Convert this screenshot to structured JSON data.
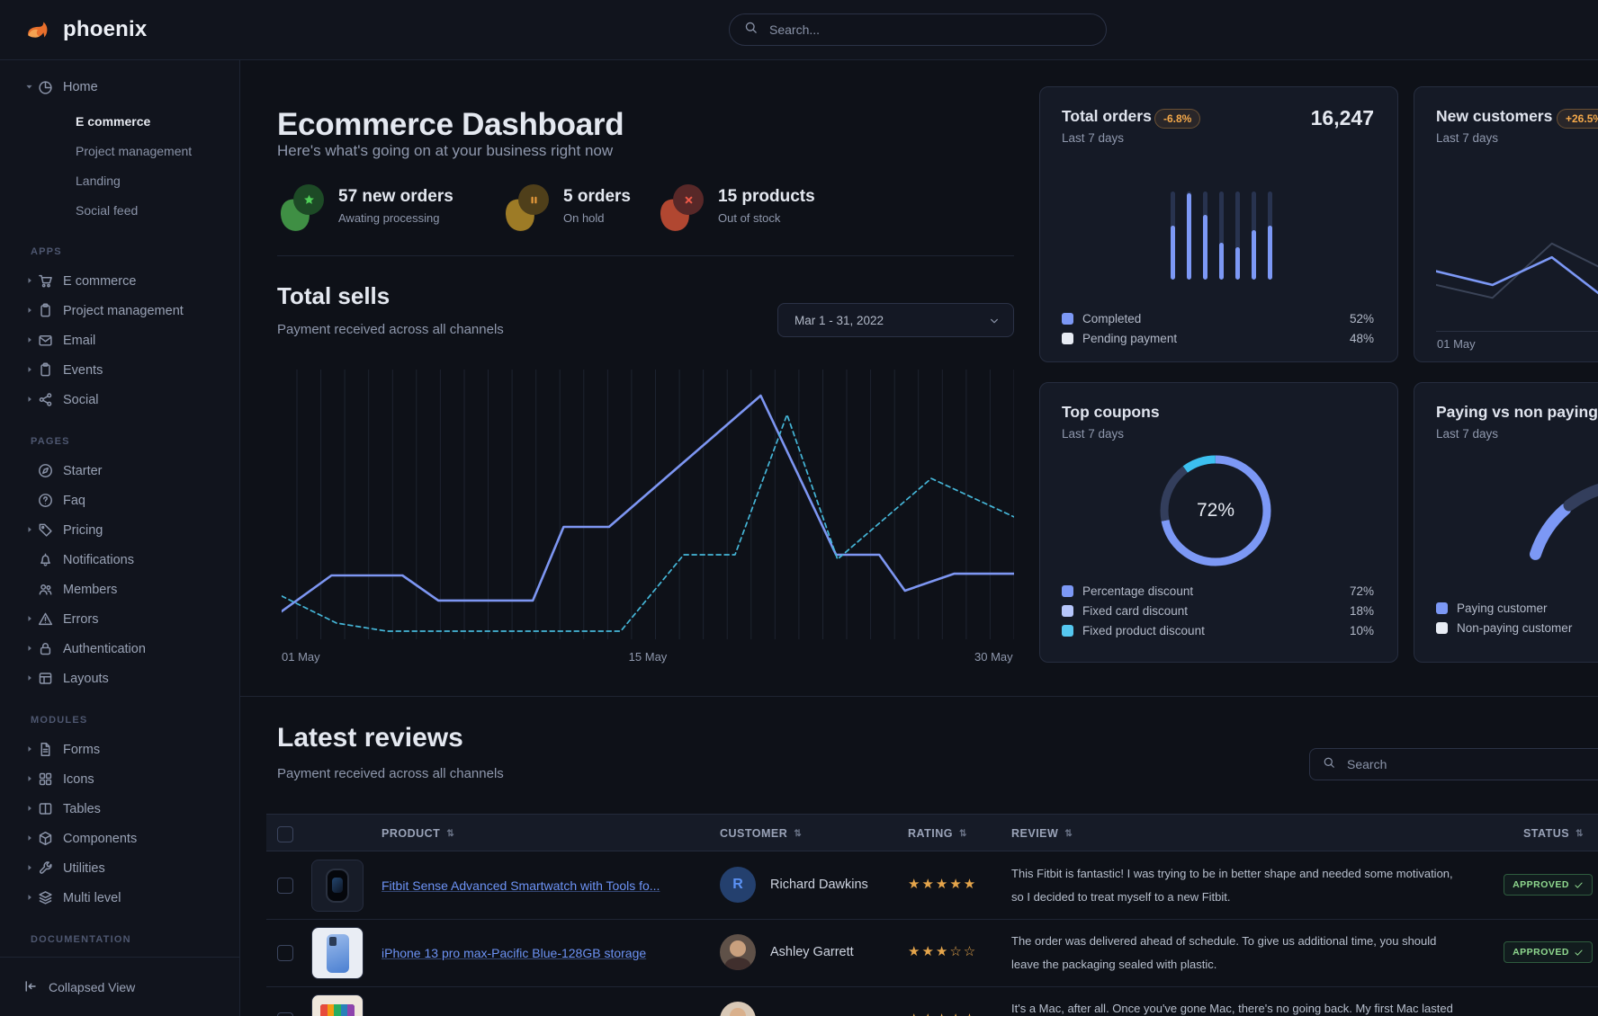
{
  "brand": {
    "name": "phoenix"
  },
  "navbar": {
    "search_placeholder": "Search..."
  },
  "sidebar": {
    "home": {
      "label": "Home",
      "icon": "pie-chart",
      "children": [
        {
          "label": "E commerce",
          "active": true
        },
        {
          "label": "Project management",
          "active": false
        },
        {
          "label": "Landing",
          "active": false
        },
        {
          "label": "Social feed",
          "active": false
        }
      ]
    },
    "sections": [
      {
        "title": "APPS",
        "items": [
          {
            "label": "E commerce",
            "icon": "cart",
            "caret": true
          },
          {
            "label": "Project management",
            "icon": "clipboard",
            "caret": true
          },
          {
            "label": "Email",
            "icon": "envelope",
            "caret": true
          },
          {
            "label": "Events",
            "icon": "clipboard",
            "caret": true
          },
          {
            "label": "Social",
            "icon": "share",
            "caret": true
          }
        ]
      },
      {
        "title": "PAGES",
        "items": [
          {
            "label": "Starter",
            "icon": "compass",
            "caret": false
          },
          {
            "label": "Faq",
            "icon": "circle-question",
            "caret": false
          },
          {
            "label": "Pricing",
            "icon": "tag",
            "caret": true
          },
          {
            "label": "Notifications",
            "icon": "bell",
            "caret": false
          },
          {
            "label": "Members",
            "icon": "users",
            "caret": false
          },
          {
            "label": "Errors",
            "icon": "warning",
            "caret": true
          },
          {
            "label": "Authentication",
            "icon": "lock",
            "caret": true
          },
          {
            "label": "Layouts",
            "icon": "layout",
            "caret": true
          }
        ]
      },
      {
        "title": "MODULES",
        "items": [
          {
            "label": "Forms",
            "icon": "file",
            "caret": true
          },
          {
            "label": "Icons",
            "icon": "grid",
            "caret": true
          },
          {
            "label": "Tables",
            "icon": "table",
            "caret": true
          },
          {
            "label": "Components",
            "icon": "cube",
            "caret": true
          },
          {
            "label": "Utilities",
            "icon": "wrench",
            "caret": true
          },
          {
            "label": "Multi level",
            "icon": "layers",
            "caret": true
          }
        ]
      },
      {
        "title": "DOCUMENTATION",
        "items": []
      }
    ],
    "footer": {
      "label": "Collapsed View"
    }
  },
  "page": {
    "title": "Ecommerce Dashboard",
    "subtitle": "Here's what's going on at your business right now"
  },
  "stats": [
    {
      "headline": "57 new orders",
      "caption": "Awating processing",
      "tone": "success",
      "glyph": "star"
    },
    {
      "headline": "5 orders",
      "caption": "On hold",
      "tone": "warning",
      "glyph": "pause"
    },
    {
      "headline": "15 products",
      "caption": "Out of stock",
      "tone": "danger",
      "glyph": "cross"
    }
  ],
  "total_sells": {
    "title": "Total sells",
    "subtitle": "Payment received across all channels",
    "date_range": "Mar 1 - 31, 2022",
    "x_labels": [
      "01 May",
      "15 May",
      "30 May"
    ]
  },
  "cards": {
    "total_orders": {
      "title": "Total orders",
      "badge": "-6.8%",
      "period": "Last 7 days",
      "value": "16,247",
      "legend": [
        {
          "label": "Completed",
          "value": "52%",
          "color": "#7c98f5"
        },
        {
          "label": "Pending payment",
          "value": "48%",
          "color": "#e8ecf4"
        }
      ]
    },
    "new_customers": {
      "title": "New customers",
      "badge": "+26.5%",
      "period": "Last 7 days",
      "x_label": "01 May"
    },
    "top_coupons": {
      "title": "Top coupons",
      "period": "Last 7 days",
      "center_label": "72%",
      "legend": [
        {
          "label": "Percentage discount",
          "value": "72%",
          "color": "#7c98f5"
        },
        {
          "label": "Fixed card discount",
          "value": "18%",
          "color": "#b6c6fb"
        },
        {
          "label": "Fixed product discount",
          "value": "10%",
          "color": "#55c7f0"
        }
      ]
    },
    "paying_vs_non_paying": {
      "title": "Paying vs non paying",
      "period": "Last 7 days",
      "legend": [
        {
          "label": "Paying customer",
          "color": "#7c98f5"
        },
        {
          "label": "Non-paying customer",
          "color": "#e8ecf4"
        }
      ]
    }
  },
  "reviews": {
    "title": "Latest reviews",
    "subtitle": "Payment received across all channels",
    "search_placeholder": "Search",
    "columns": [
      "PRODUCT",
      "CUSTOMER",
      "RATING",
      "REVIEW",
      "STATUS"
    ],
    "rows": [
      {
        "product": "Fitbit Sense Advanced Smartwatch with Tools fo...",
        "thumb": "smartwatch",
        "customer": "Richard Dawkins",
        "avatar": {
          "type": "initial",
          "text": "R"
        },
        "rating": 5,
        "review_lines": [
          "This Fitbit is fantastic! I was trying to be in better shape and needed some motivation,",
          "so I decided to treat myself to a new Fitbit."
        ],
        "status": "APPROVED"
      },
      {
        "product": "iPhone 13 pro max-Pacific Blue-128GB storage",
        "thumb": "iphone",
        "customer": "Ashley Garrett",
        "avatar": {
          "type": "photo",
          "bg": "#5f5148",
          "skin": "#c9a07e",
          "torso": "#402f2d"
        },
        "rating": 3,
        "review_lines": [
          "The order was delivered ahead of schedule. To give us additional time, you should",
          "leave the packaging sealed with plastic."
        ],
        "status": "APPROVED"
      },
      {
        "product": "",
        "thumb": "macbook",
        "customer": "",
        "avatar": {
          "type": "photo",
          "bg": "#d8c8b6",
          "skin": "#d9b08c",
          "torso": "#8a6f52"
        },
        "rating": 5,
        "review_lines": [
          "It's a Mac, after all. Once you've gone Mac, there's no going back. My first Mac lasted"
        ],
        "status": ""
      }
    ]
  },
  "chart_data": [
    {
      "id": "total-sells",
      "type": "line",
      "title": "Total sells",
      "x_labels": [
        "01 May",
        "15 May",
        "30 May"
      ],
      "grid": "vertical-daily",
      "series": [
        {
          "name": "this period",
          "style": "solid",
          "color": "#7d96f2",
          "points_pct": [
            [
              0,
              88.7
            ],
            [
              6.8,
              75.8
            ],
            [
              16.5,
              75.8
            ],
            [
              21.4,
              84.8
            ],
            [
              34.3,
              84.8
            ],
            [
              38.5,
              58.4
            ],
            [
              44.7,
              58.4
            ],
            [
              65.4,
              11.3
            ],
            [
              75.7,
              68.4
            ],
            [
              81.6,
              68.4
            ],
            [
              85.1,
              81.3
            ],
            [
              91.8,
              75.2
            ],
            [
              100,
              75.2
            ]
          ]
        },
        {
          "name": "previous period",
          "style": "dashed",
          "color": "#45b6d8",
          "points_pct": [
            [
              0,
              83.2
            ],
            [
              7.5,
              92.9
            ],
            [
              14.4,
              95.8
            ],
            [
              46.3,
              95.8
            ],
            [
              54.9,
              68.4
            ],
            [
              61.9,
              68.4
            ],
            [
              69,
              18.1
            ],
            [
              75.9,
              70
            ],
            [
              88.7,
              41
            ],
            [
              100,
              54.8
            ]
          ]
        }
      ]
    },
    {
      "id": "total-orders",
      "type": "bar",
      "stacked": true,
      "total": "16,247",
      "change": "-6.8%",
      "categories": [
        "d1",
        "d2",
        "d3",
        "d4",
        "d5",
        "d6",
        "d7"
      ],
      "series": [
        {
          "name": "Completed",
          "share": 52,
          "color": "#7c98f5",
          "bar_fractions": [
            0.61,
            0.98,
            0.73,
            0.42,
            0.37,
            0.56,
            0.61
          ]
        },
        {
          "name": "Pending payment",
          "share": 48,
          "color": "#28334f"
        }
      ]
    },
    {
      "id": "new-customers",
      "type": "line",
      "change": "+26.5%",
      "x_label": "01 May",
      "series": [
        {
          "name": "current",
          "color": "#7c98f5",
          "points_pct": [
            [
              0,
              36
            ],
            [
              19,
              52
            ],
            [
              39,
              20
            ],
            [
              56,
              65
            ],
            [
              75,
              30
            ],
            [
              100,
              55
            ]
          ]
        },
        {
          "name": "previous",
          "color": "#3b4458",
          "points_pct": [
            [
              0,
              52
            ],
            [
              19,
              67
            ],
            [
              39,
              4
            ],
            [
              59,
              38
            ],
            [
              78,
              60
            ],
            [
              100,
              35
            ]
          ]
        }
      ]
    },
    {
      "id": "top-coupons",
      "type": "pie",
      "donut": true,
      "center_label": "72%",
      "slices": [
        {
          "label": "Percentage discount",
          "value": 72,
          "color": "#7c98f5"
        },
        {
          "label": "Fixed card discount",
          "value": 18,
          "color": "#333e5c"
        },
        {
          "label": "Fixed product discount",
          "value": 10,
          "color": "#3cc0f0"
        }
      ]
    },
    {
      "id": "paying-vs-non-paying",
      "type": "pie",
      "donut": true,
      "partial_view": true,
      "slices": [
        {
          "label": "Paying customer",
          "color": "#7c98f5"
        },
        {
          "label": "Non-paying customer",
          "color": "#333e5c"
        }
      ]
    }
  ]
}
